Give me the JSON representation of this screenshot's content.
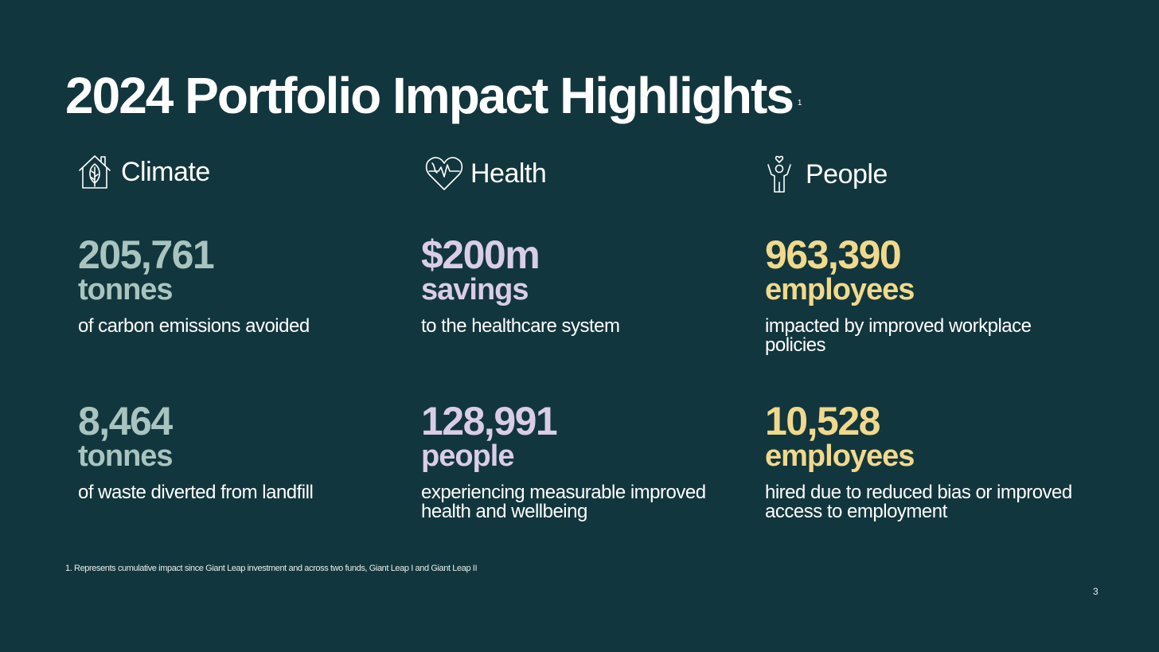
{
  "title": "2024 Portfolio Impact Highlights",
  "title_footnote_marker": "1",
  "columns": [
    {
      "label": "Climate",
      "icon": "house-leaf-icon",
      "accent": "#a9c4bf",
      "metrics": [
        {
          "value": "205,761",
          "unit": "tonnes",
          "description": "of carbon emissions avoided"
        },
        {
          "value": "8,464",
          "unit": "tonnes",
          "description": "of waste diverted from landfill"
        }
      ]
    },
    {
      "label": "Health",
      "icon": "heart-heartbeat-icon",
      "accent": "#d9cde8",
      "metrics": [
        {
          "value": "$200m",
          "unit": "savings",
          "description": "to the healthcare system"
        },
        {
          "value": "128,991",
          "unit": "people",
          "description": "experiencing measurable improved health and wellbeing"
        }
      ]
    },
    {
      "label": "People",
      "icon": "person-heart-icon",
      "accent": "#f1d98c",
      "metrics": [
        {
          "value": "963,390",
          "unit": "employees",
          "description": "impacted by improved workplace policies"
        },
        {
          "value": "10,528",
          "unit": "employees",
          "description": "hired due to reduced bias or improved access to employment"
        }
      ]
    }
  ],
  "footnote": "1. Represents cumulative impact since Giant Leap investment and across two funds, Giant Leap I and Giant Leap II",
  "page_number": "3",
  "colors": {
    "background": "#12363d",
    "text": "#ffffff"
  }
}
